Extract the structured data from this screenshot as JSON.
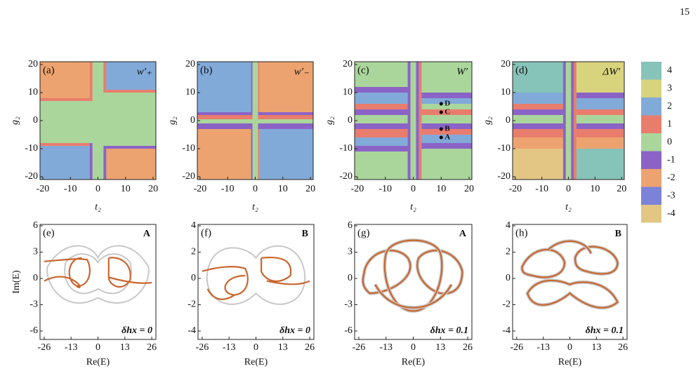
{
  "page_number": "15",
  "top_panels": [
    {
      "label": "(a)",
      "title": "w′₊"
    },
    {
      "label": "(b)",
      "title": "w′₋"
    },
    {
      "label": "(c)",
      "title": "W′",
      "points": [
        "D",
        "C",
        "B",
        "A"
      ]
    },
    {
      "label": "(d)",
      "title": "ΔW′"
    }
  ],
  "top_axes": {
    "xlabel": "t₂",
    "ylabel": "g₂",
    "xlim": [
      -21,
      21
    ],
    "ylim": [
      -21,
      21
    ],
    "xticks": [
      -20,
      -10,
      0,
      10,
      20
    ],
    "yticks": [
      -20,
      -10,
      0,
      10,
      20
    ]
  },
  "colorbar": {
    "labels": [
      4,
      3,
      2,
      1,
      0,
      -1,
      -2,
      -3,
      -4
    ],
    "colors": [
      "#86c3b9",
      "#d8d37d",
      "#82aad9",
      "#e97d6d",
      "#aad69c",
      "#8b63c6",
      "#eda36f",
      "#7b82d8",
      "#e3c684"
    ]
  },
  "bottom_panels": [
    {
      "label": "(e)",
      "point": "A",
      "note": "δhx = 0",
      "yticks": [
        -6,
        -3,
        0,
        3,
        6
      ]
    },
    {
      "label": "(f)",
      "point": "B",
      "note": "δhx = 0",
      "yticks": [
        -4,
        -2,
        0,
        2,
        4
      ]
    },
    {
      "label": "(g)",
      "point": "A",
      "note": "δhx = 0.1",
      "yticks": [
        -6,
        -3,
        0,
        3,
        6
      ]
    },
    {
      "label": "(h)",
      "point": "B",
      "note": "δhx = 0.1",
      "yticks": [
        -4,
        -2,
        0,
        2,
        4
      ]
    }
  ],
  "bottom_axes": {
    "xlabel": "Re(E)",
    "ylabel": "Im(E)",
    "xlim": [
      -28,
      28
    ],
    "xticks": [
      -26,
      -13,
      0,
      13,
      26
    ]
  }
}
